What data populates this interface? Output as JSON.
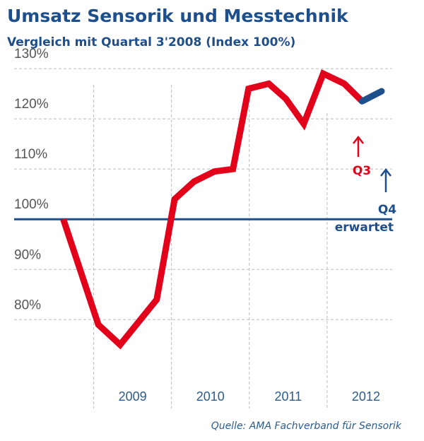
{
  "chart_data": {
    "type": "line",
    "title": "Umsatz Sensorik und Messtechnik",
    "subtitle": "Vergleich mit Quartal 3'2008 (Index 100%)",
    "source": "Quelle: AMA Fachverband für Sensorik",
    "categories": [
      "2009",
      "2010",
      "2011",
      "2012"
    ],
    "category_starts": [
      2009,
      2010,
      2011,
      2012
    ],
    "xlim": [
      2008.45,
      2012.9
    ],
    "ylim": [
      73,
      131
    ],
    "yticks": [
      {
        "value": 80,
        "label": "80%"
      },
      {
        "value": 90,
        "label": "90%"
      },
      {
        "value": 100,
        "label": "100%"
      },
      {
        "value": 110,
        "label": "110%"
      },
      {
        "value": 120,
        "label": "120%"
      },
      {
        "value": 130,
        "label": "130%"
      }
    ],
    "grid": true,
    "reference_line": {
      "value": 100,
      "color": "#1d4f8c"
    },
    "series": [
      {
        "color": "#e2001a",
        "x": [
          2008.61,
          2009.06,
          2009.34,
          2009.81,
          2010.04,
          2010.29,
          2010.55,
          2010.79,
          2010.99,
          2011.25,
          2011.47,
          2011.7,
          2011.95,
          2012.22,
          2012.45
        ],
        "values": [
          100,
          79,
          75,
          84,
          104,
          107.5,
          109.5,
          110,
          126,
          127,
          124,
          119,
          129,
          127,
          123.5
        ]
      },
      {
        "color": "#1d4f8c",
        "x": [
          2012.45,
          2012.7
        ],
        "values": [
          123.5,
          125.5
        ]
      }
    ],
    "annotations": [
      {
        "text": "Q3",
        "color": "#e2001a"
      },
      {
        "text": "Q4",
        "color": "#1d4f8c"
      },
      {
        "text": "erwartet",
        "color": "#1d4f8c"
      }
    ]
  }
}
